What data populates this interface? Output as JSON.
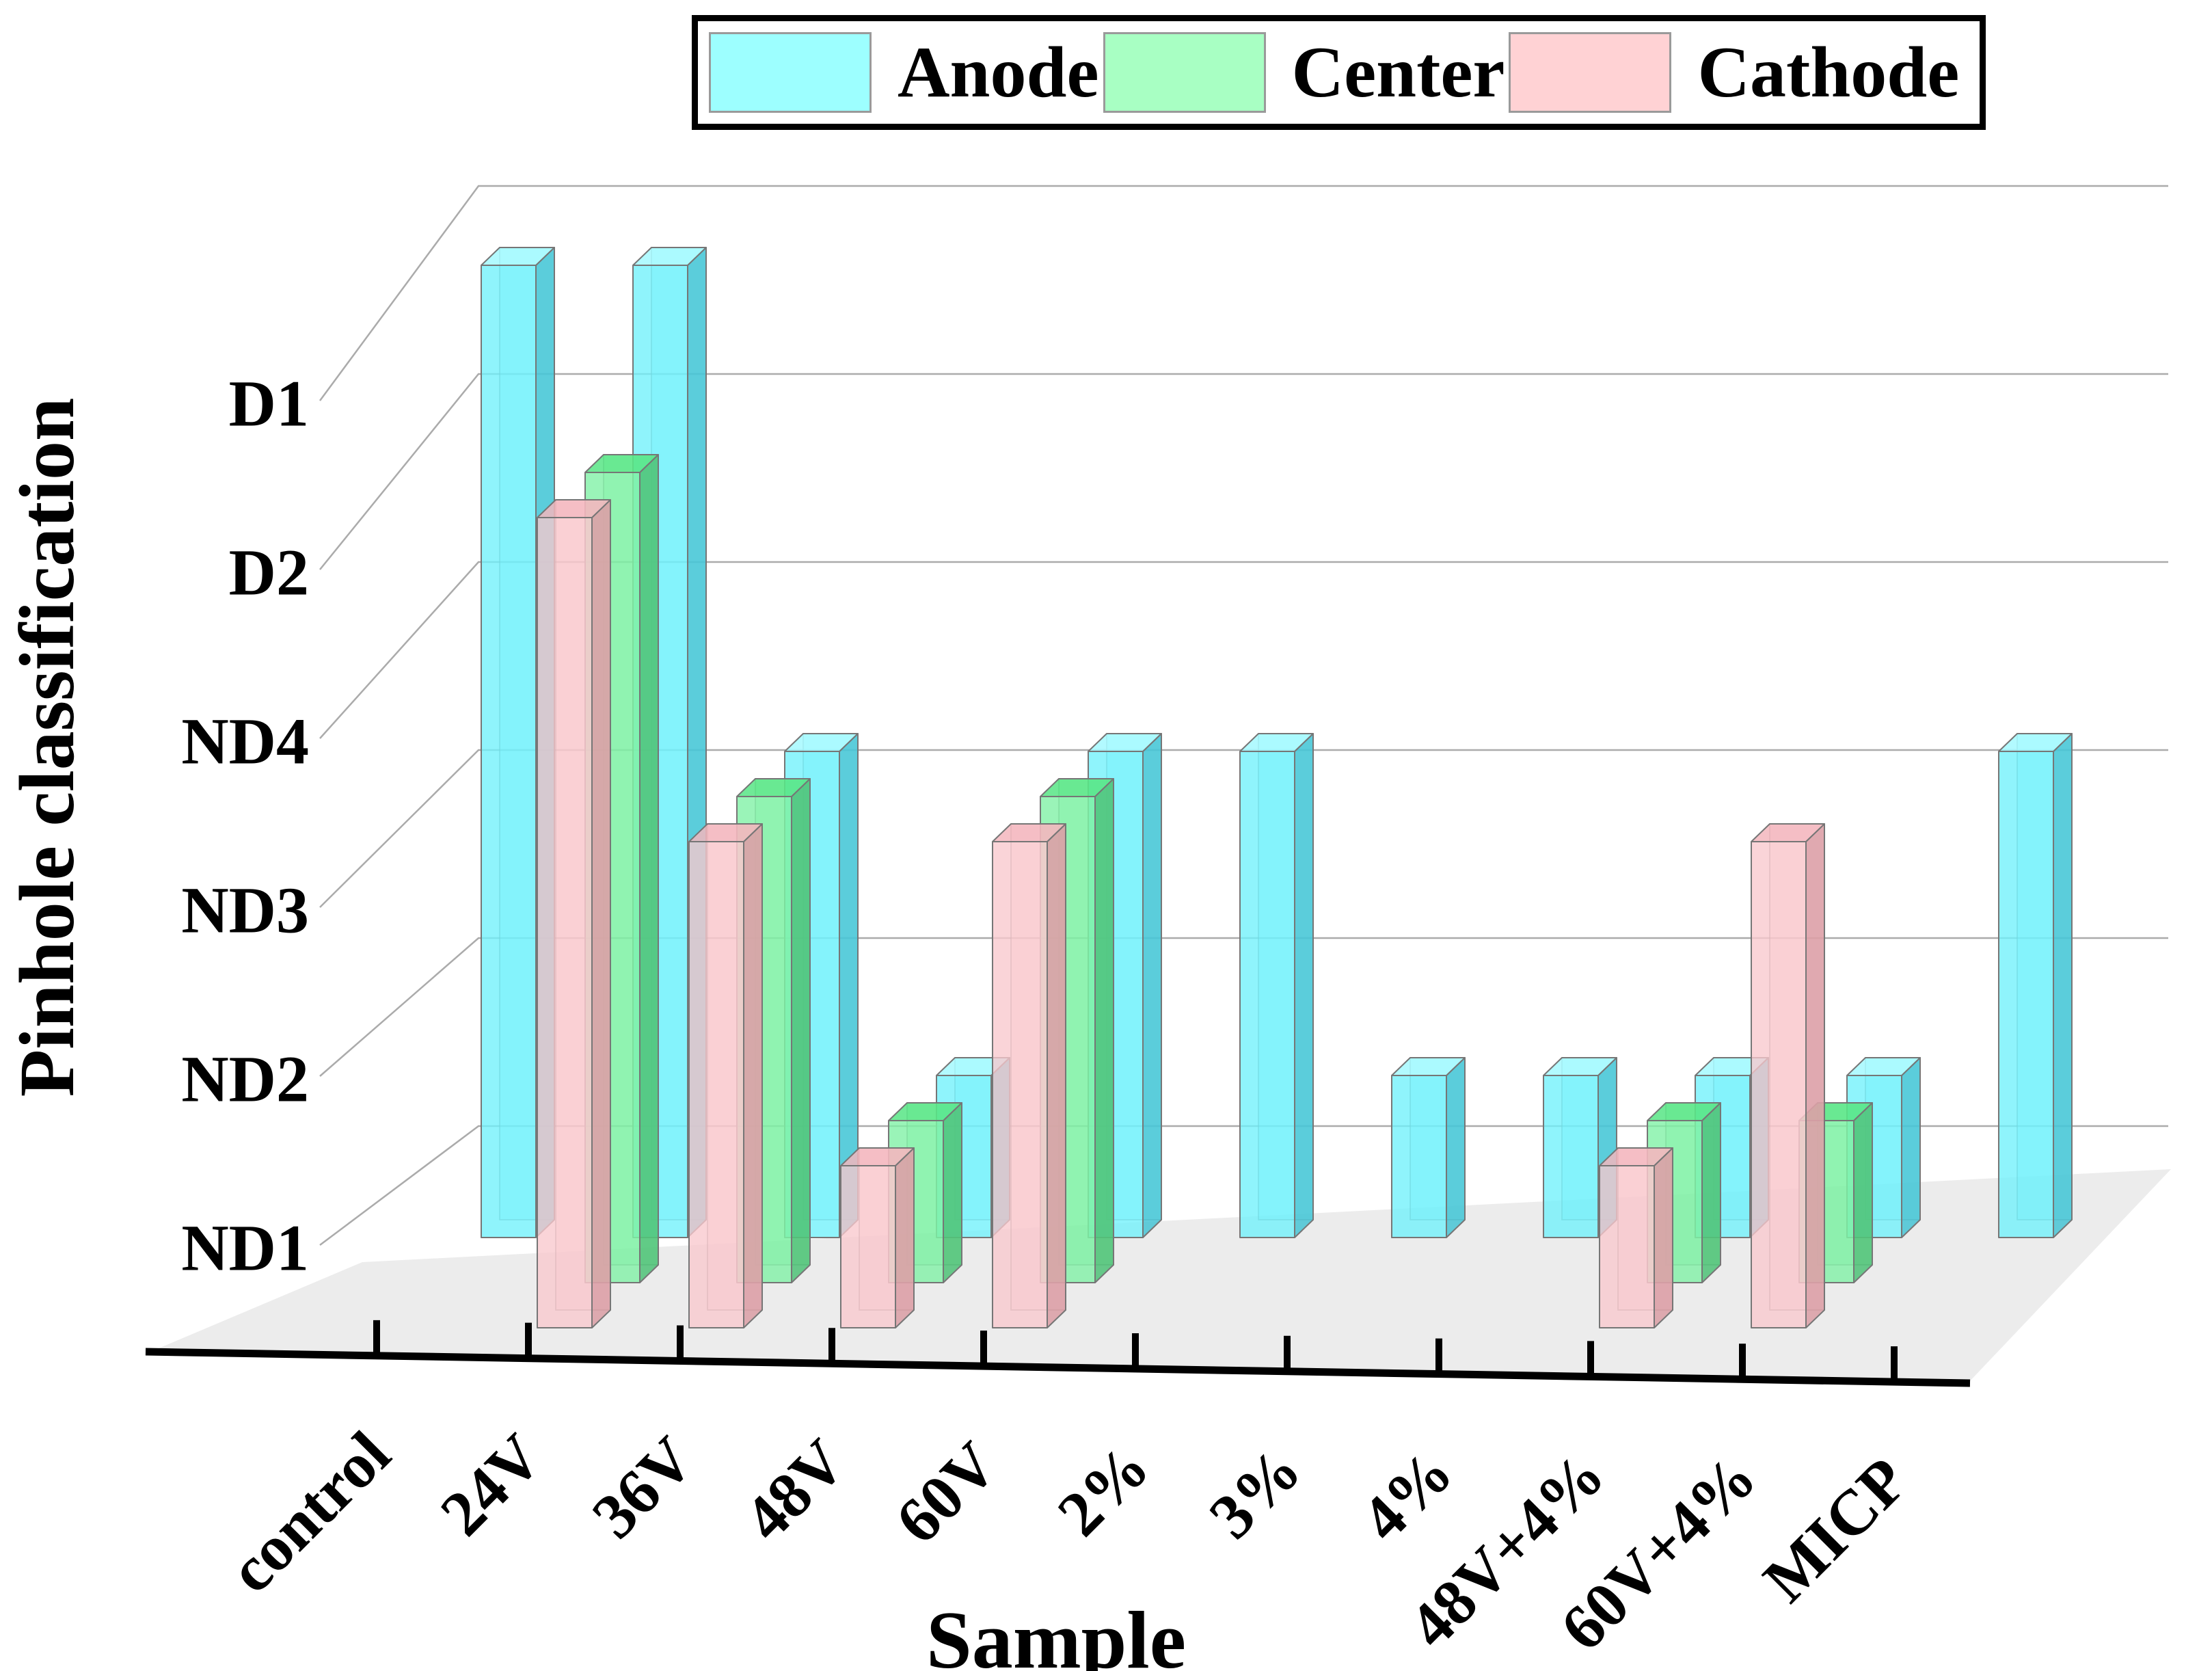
{
  "figure": {
    "kind": "3d-grouped-bar-chart"
  },
  "legend": {
    "position": "top",
    "items": [
      {
        "label": "Anode",
        "color": "#9DFFFF"
      },
      {
        "label": "Center",
        "color": "#A8FFC3"
      },
      {
        "label": "Cathode",
        "color": "#FFD2D4"
      }
    ]
  },
  "chart_data": {
    "type": "bar",
    "projection": "3d-oblique",
    "title": "",
    "xlabel": "Sample",
    "ylabel": "Pinhole classification",
    "y_levels": [
      "ND1",
      "ND2",
      "ND3",
      "ND4",
      "D2",
      "D1"
    ],
    "categories": [
      "control",
      "24V",
      "36V",
      "48V",
      "60V",
      "2%",
      "3%",
      "4%",
      "48V+4%",
      "60V+4%",
      "MICP"
    ],
    "series": [
      {
        "name": "Anode",
        "legend_color": "#9DFFFF",
        "front_color": "#6FF1FB",
        "top_color": "#A5F9FF",
        "side_color": "#46C4D5",
        "values": [
          "D1",
          "D1",
          "ND3",
          "ND1",
          "ND3",
          "ND3",
          "ND1",
          "ND1",
          "ND1",
          "ND1",
          "ND3"
        ]
      },
      {
        "name": "Center",
        "legend_color": "#A8FFC3",
        "front_color": "#7EF1A4",
        "top_color": "#57E585",
        "side_color": "#4EC277",
        "values": [
          null,
          "D2",
          "ND3",
          "ND1",
          "ND3",
          null,
          null,
          null,
          "ND1",
          "ND1",
          null
        ]
      },
      {
        "name": "Cathode",
        "legend_color": "#FFD2D4",
        "front_color": "#F9C8CD",
        "top_color": "#F3B6BD",
        "side_color": "#DA9DA5",
        "values": [
          null,
          "D2",
          "ND3",
          "ND1",
          "ND3",
          null,
          null,
          null,
          "ND1",
          "ND3",
          null
        ]
      }
    ],
    "value_scale": {
      "ND1": 1,
      "ND2": 2,
      "ND3": 3,
      "ND4": 4,
      "D2": 5,
      "D1": 6
    },
    "grid": "horizontal-level-lines",
    "depth_order_front_to_back": [
      "Cathode",
      "Center",
      "Anode"
    ]
  }
}
